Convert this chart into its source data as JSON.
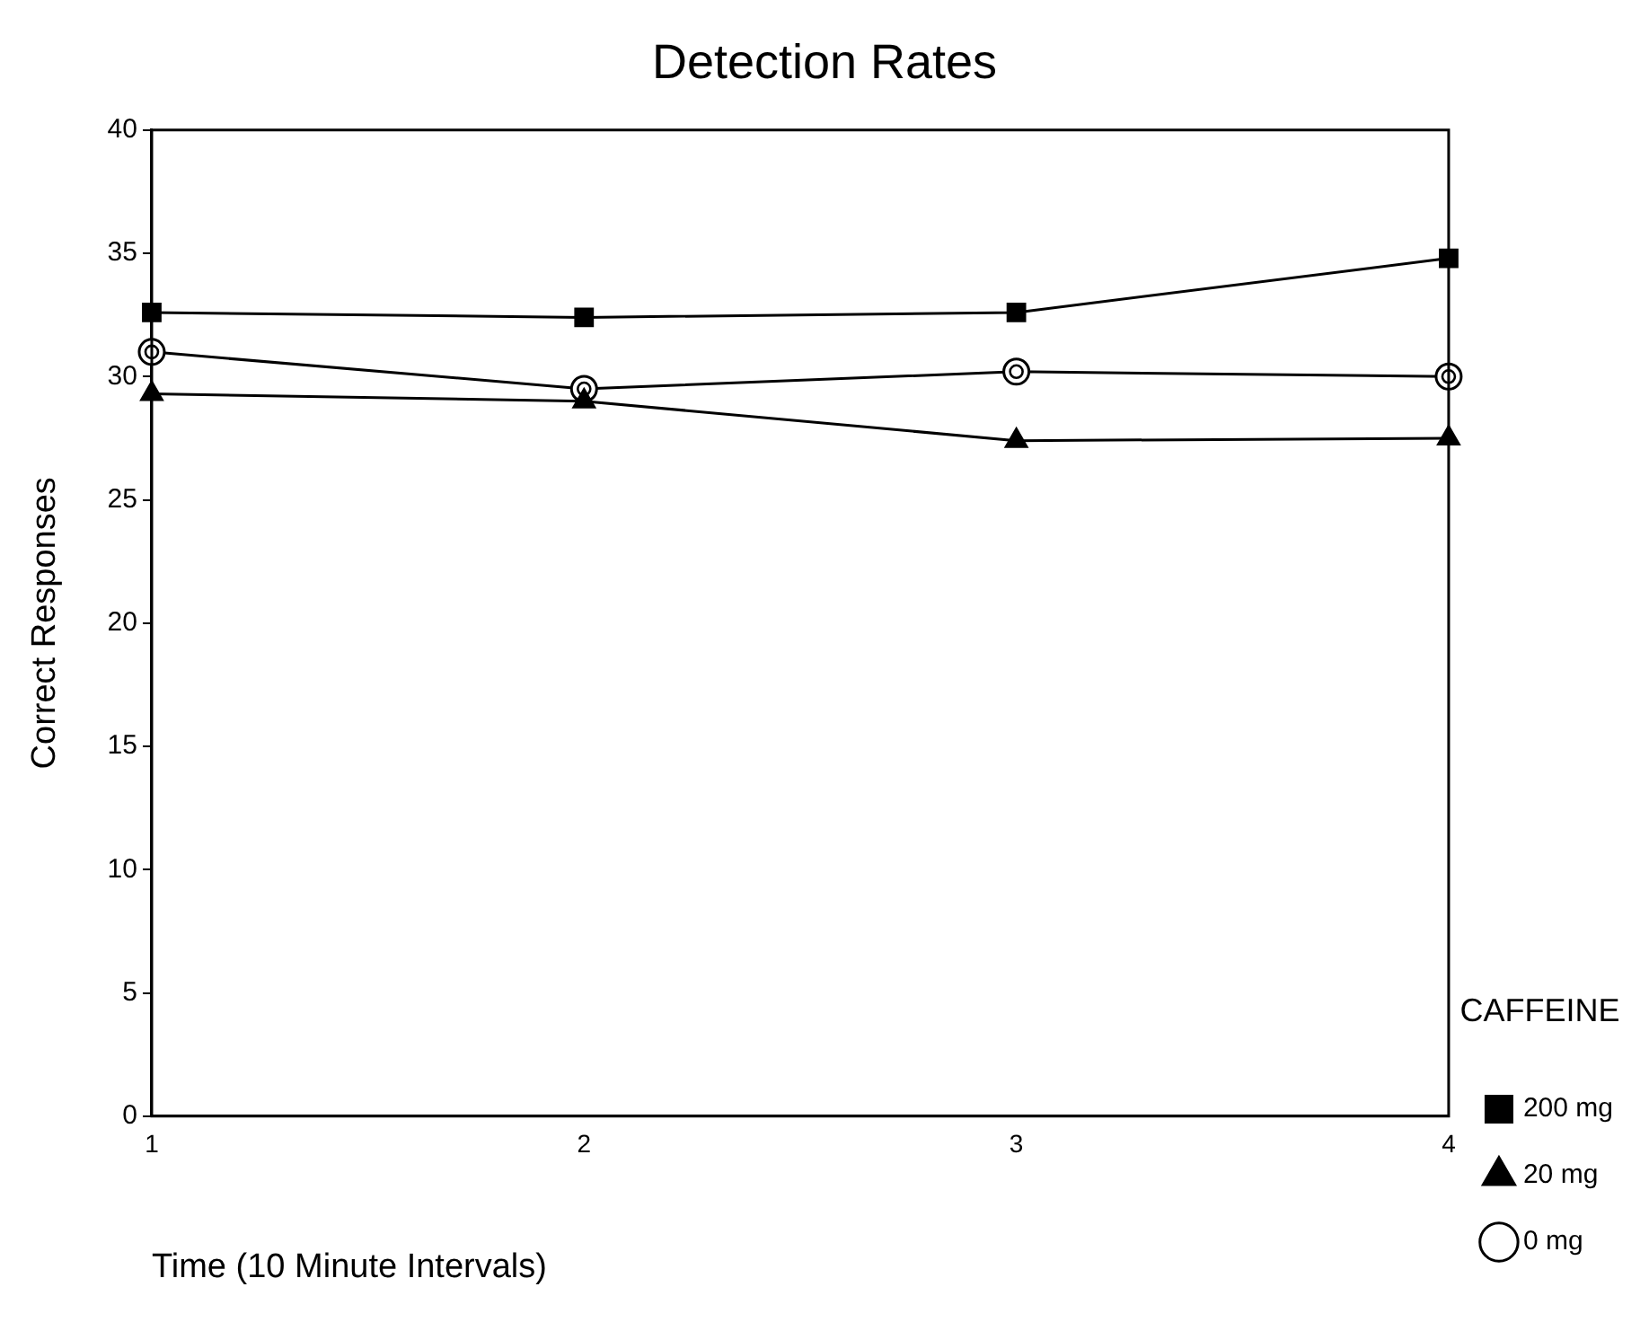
{
  "chart_data": {
    "type": "line",
    "title": "Detection Rates",
    "xlabel": "Time (10 Minute Intervals)",
    "ylabel": "Correct Responses",
    "legend_title": "CAFFEINE",
    "x": [
      1,
      2,
      3,
      4
    ],
    "xlim": [
      1,
      4
    ],
    "xticks": [
      1,
      2,
      3,
      4
    ],
    "ylim": [
      0,
      40
    ],
    "yticks": [
      0,
      5,
      10,
      15,
      20,
      25,
      30,
      35,
      40
    ],
    "grid": false,
    "legend": "right",
    "series": [
      {
        "name": "200 mg",
        "color": "#000000",
        "marker": "square",
        "values": [
          32.6,
          32.4,
          32.6,
          34.8
        ]
      },
      {
        "name": "20 mg",
        "color": "#000000",
        "marker": "triangle",
        "values": [
          29.3,
          29.0,
          27.4,
          27.5
        ]
      },
      {
        "name": "0 mg",
        "color": "#000000",
        "marker": "circle",
        "values": [
          31.0,
          29.5,
          30.2,
          30.0
        ]
      }
    ]
  }
}
